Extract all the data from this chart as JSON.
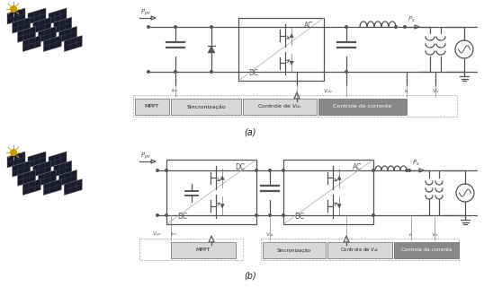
{
  "fig_width": 5.58,
  "fig_height": 3.2,
  "lc": "#555555",
  "lc_light": "#888888",
  "panel_dark": "#1a1a2e",
  "panel_mid": "#2d2d44",
  "box_light_fill": "#d8d8d8",
  "box_dark_fill": "#888888",
  "box_edge": "#666666",
  "text_dark": "#222222",
  "text_white": "#ffffff",
  "sun_color": "#cc9900",
  "caption_a": "(a)",
  "caption_b": "(b)",
  "label_ppv": "$P_{pv}$",
  "label_ps": "$P_s$",
  "label_ipv": "$i_{pv}$",
  "label_vdc": "$V_{dc}$",
  "label_is": "$i_s$",
  "label_vs": "$V_s$",
  "label_vpv": "$V_{pv}$",
  "label_mppt": "MPPT",
  "label_sinc": "Sincronização",
  "label_cvdc": "Controle de V$_{dc}$",
  "label_ccor": "Controle de corrente"
}
